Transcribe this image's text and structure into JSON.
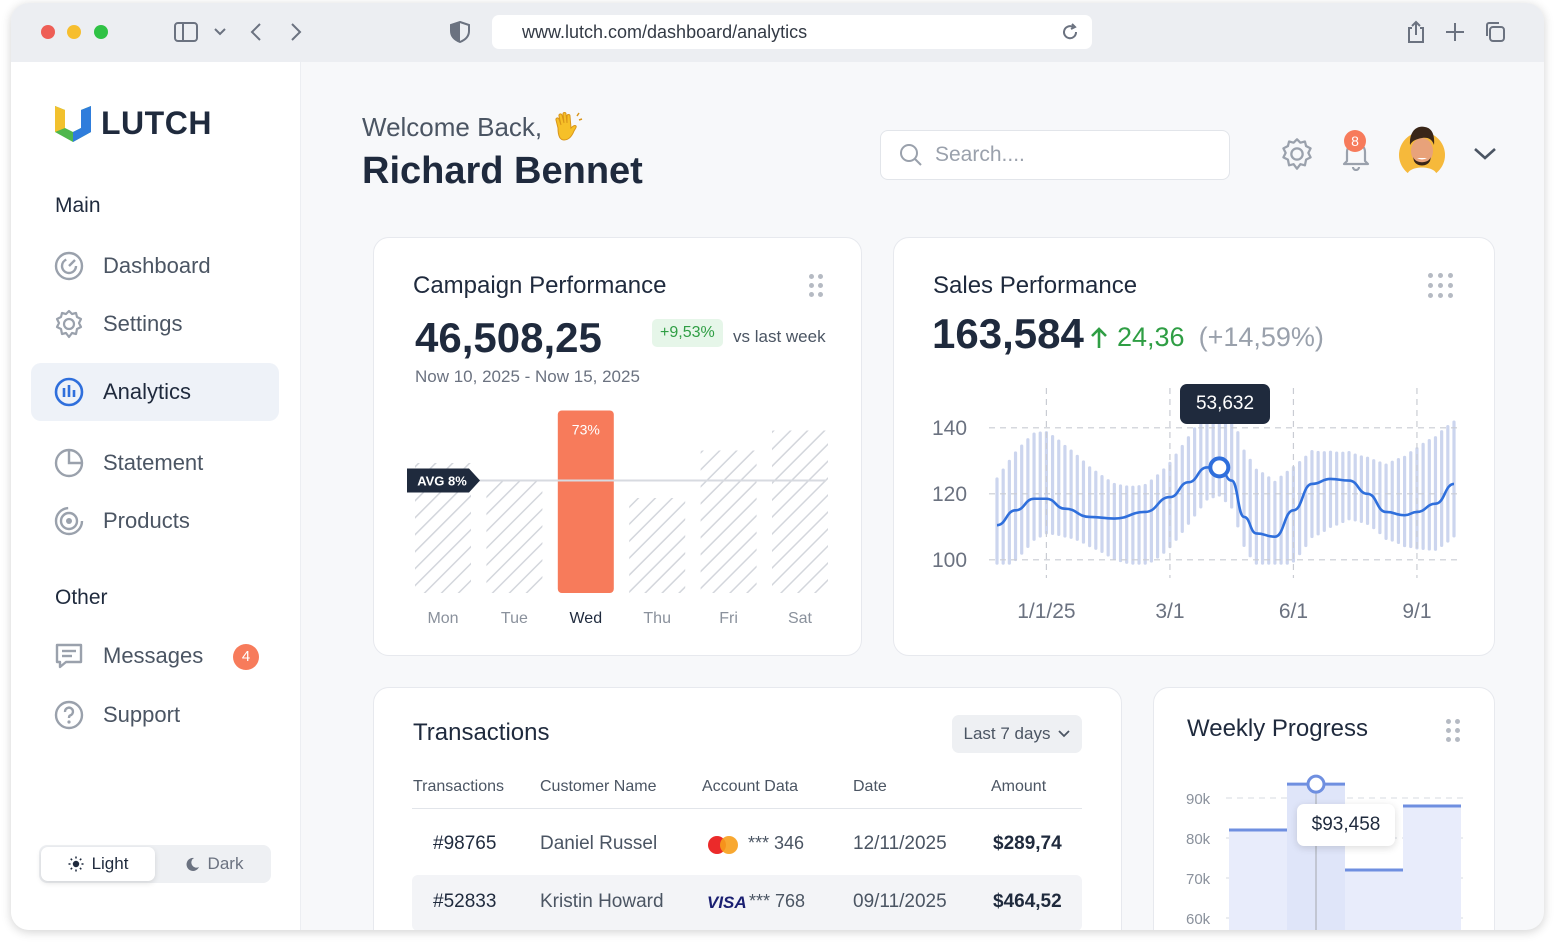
{
  "browser": {
    "url": "www.lutch.com/dashboard/analytics"
  },
  "brand": {
    "name": "LUTCH"
  },
  "sidebar": {
    "main_label": "Main",
    "main_items": [
      {
        "label": "Dashboard",
        "icon": "speedometer-icon"
      },
      {
        "label": "Settings",
        "icon": "gear-icon"
      },
      {
        "label": "Analytics",
        "icon": "bar-chart-icon",
        "active": true
      },
      {
        "label": "Statement",
        "icon": "pie-chart-icon"
      },
      {
        "label": "Products",
        "icon": "target-icon"
      }
    ],
    "other_label": "Other",
    "other_items": [
      {
        "label": "Messages",
        "icon": "message-icon",
        "badge": "4"
      },
      {
        "label": "Support",
        "icon": "help-icon"
      }
    ],
    "theme": {
      "light": "Light",
      "dark": "Dark",
      "selected": "light"
    }
  },
  "header": {
    "welcome": "Welcome Back,",
    "user_name": "Richard Bennet",
    "search_placeholder": "Search....",
    "notification_count": "8"
  },
  "campaign": {
    "title": "Campaign Performance",
    "value": "46,508,25",
    "change": "+9,53%",
    "compare": "vs last week",
    "date_range": "Now 10, 2025 - Now 15, 2025",
    "avg_label": "AVG 8%",
    "highlight_label": "73%",
    "chart_data": {
      "type": "bar",
      "categories": [
        "Mon",
        "Tue",
        "Wed",
        "Thu",
        "Fri",
        "Sat"
      ],
      "values": [
        52,
        45,
        73,
        38,
        57,
        65
      ],
      "highlight_index": 2,
      "avg_line": 45,
      "ylim": [
        0,
        80
      ],
      "colors": {
        "highlight": "#f77b5b",
        "hatch": "#d3d6dc"
      }
    }
  },
  "sales": {
    "title": "Sales Performance",
    "value": "163,584",
    "delta": "24,36",
    "delta_pct": "(+14,59%)",
    "tooltip": "53,632",
    "chart_data": {
      "type": "line",
      "x_ticks": [
        "1/1/25",
        "3/1",
        "6/1",
        "9/1"
      ],
      "y_ticks": [
        "140",
        "120",
        "100"
      ],
      "ylim": [
        96,
        146
      ],
      "line_points": [
        [
          0,
          110.5
        ],
        [
          3,
          115
        ],
        [
          6,
          118.5
        ],
        [
          8,
          118.5
        ],
        [
          11,
          115.5
        ],
        [
          15,
          113
        ],
        [
          19,
          112.5
        ],
        [
          24,
          114.5
        ],
        [
          28,
          119
        ],
        [
          31,
          123.5
        ],
        [
          34,
          128
        ],
        [
          36,
          128
        ],
        [
          38,
          124
        ],
        [
          40,
          113
        ],
        [
          42,
          108
        ],
        [
          45,
          107
        ],
        [
          48,
          115
        ],
        [
          51,
          123
        ],
        [
          54,
          124.5
        ],
        [
          57,
          124
        ],
        [
          60,
          120
        ],
        [
          63,
          114.5
        ],
        [
          66,
          113.5
        ],
        [
          68,
          114.5
        ],
        [
          71,
          117
        ],
        [
          74,
          123
        ]
      ],
      "highlight_point": [
        36,
        128
      ],
      "color": "#2f6fdc",
      "band_color": "#ccd5ee"
    }
  },
  "transactions": {
    "title": "Transactions",
    "filter": "Last 7 days",
    "columns": [
      "Transactions",
      "Customer Name",
      "Account Data",
      "Date",
      "Amount"
    ],
    "rows": [
      {
        "id": "#98765",
        "name": "Daniel Russel",
        "card": "mastercard",
        "last4": "*** 346",
        "date": "12/11/2025",
        "amount": "$289,74"
      },
      {
        "id": "#52833",
        "name": "Kristin Howard",
        "card": "VISA",
        "last4": "*** 768",
        "date": "09/11/2025",
        "amount": "$464,52"
      }
    ]
  },
  "weekly": {
    "title": "Weekly Progress",
    "tooltip": "$93,458",
    "chart_data": {
      "type": "bar",
      "y_ticks": [
        "90k",
        "80k",
        "70k",
        "60k"
      ],
      "values": [
        82000,
        93458,
        72000,
        88000
      ],
      "ylim": [
        55000,
        95000
      ],
      "highlight_index": 1,
      "color": "#e8ecfb",
      "line_color": "#6f8fe0"
    }
  }
}
